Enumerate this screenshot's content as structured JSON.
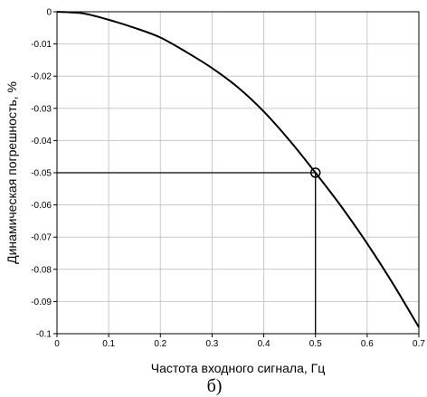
{
  "chart_data": {
    "type": "line",
    "xlabel": "Частота входного сигнала, Гц",
    "ylabel": "Динамическая погрешность, %",
    "caption": "б)",
    "xlim": [
      0,
      0.7
    ],
    "ylim": [
      -0.1,
      0
    ],
    "x_ticks": [
      "0",
      "0.1",
      "0.2",
      "0.3",
      "0.4",
      "0.5",
      "0.6",
      "0.7"
    ],
    "y_ticks": [
      "0",
      "-0.01",
      "-0.02",
      "-0.03",
      "-0.04",
      "-0.05",
      "-0.06",
      "-0.07",
      "-0.08",
      "-0.09",
      "-0.1"
    ],
    "grid": true,
    "series": [
      {
        "x": [
          0,
          0.05,
          0.1,
          0.15,
          0.2,
          0.25,
          0.3,
          0.35,
          0.4,
          0.45,
          0.5,
          0.55,
          0.6,
          0.65,
          0.7
        ],
        "y": [
          0,
          -0.0005,
          -0.0025,
          -0.005,
          -0.008,
          -0.0125,
          -0.0175,
          -0.0235,
          -0.031,
          -0.04,
          -0.05,
          -0.0605,
          -0.072,
          -0.0845,
          -0.098
        ]
      }
    ],
    "marker_point": {
      "x": 0.5,
      "y": -0.05
    },
    "guide_lines": {
      "x": 0.5,
      "y": -0.05
    }
  }
}
